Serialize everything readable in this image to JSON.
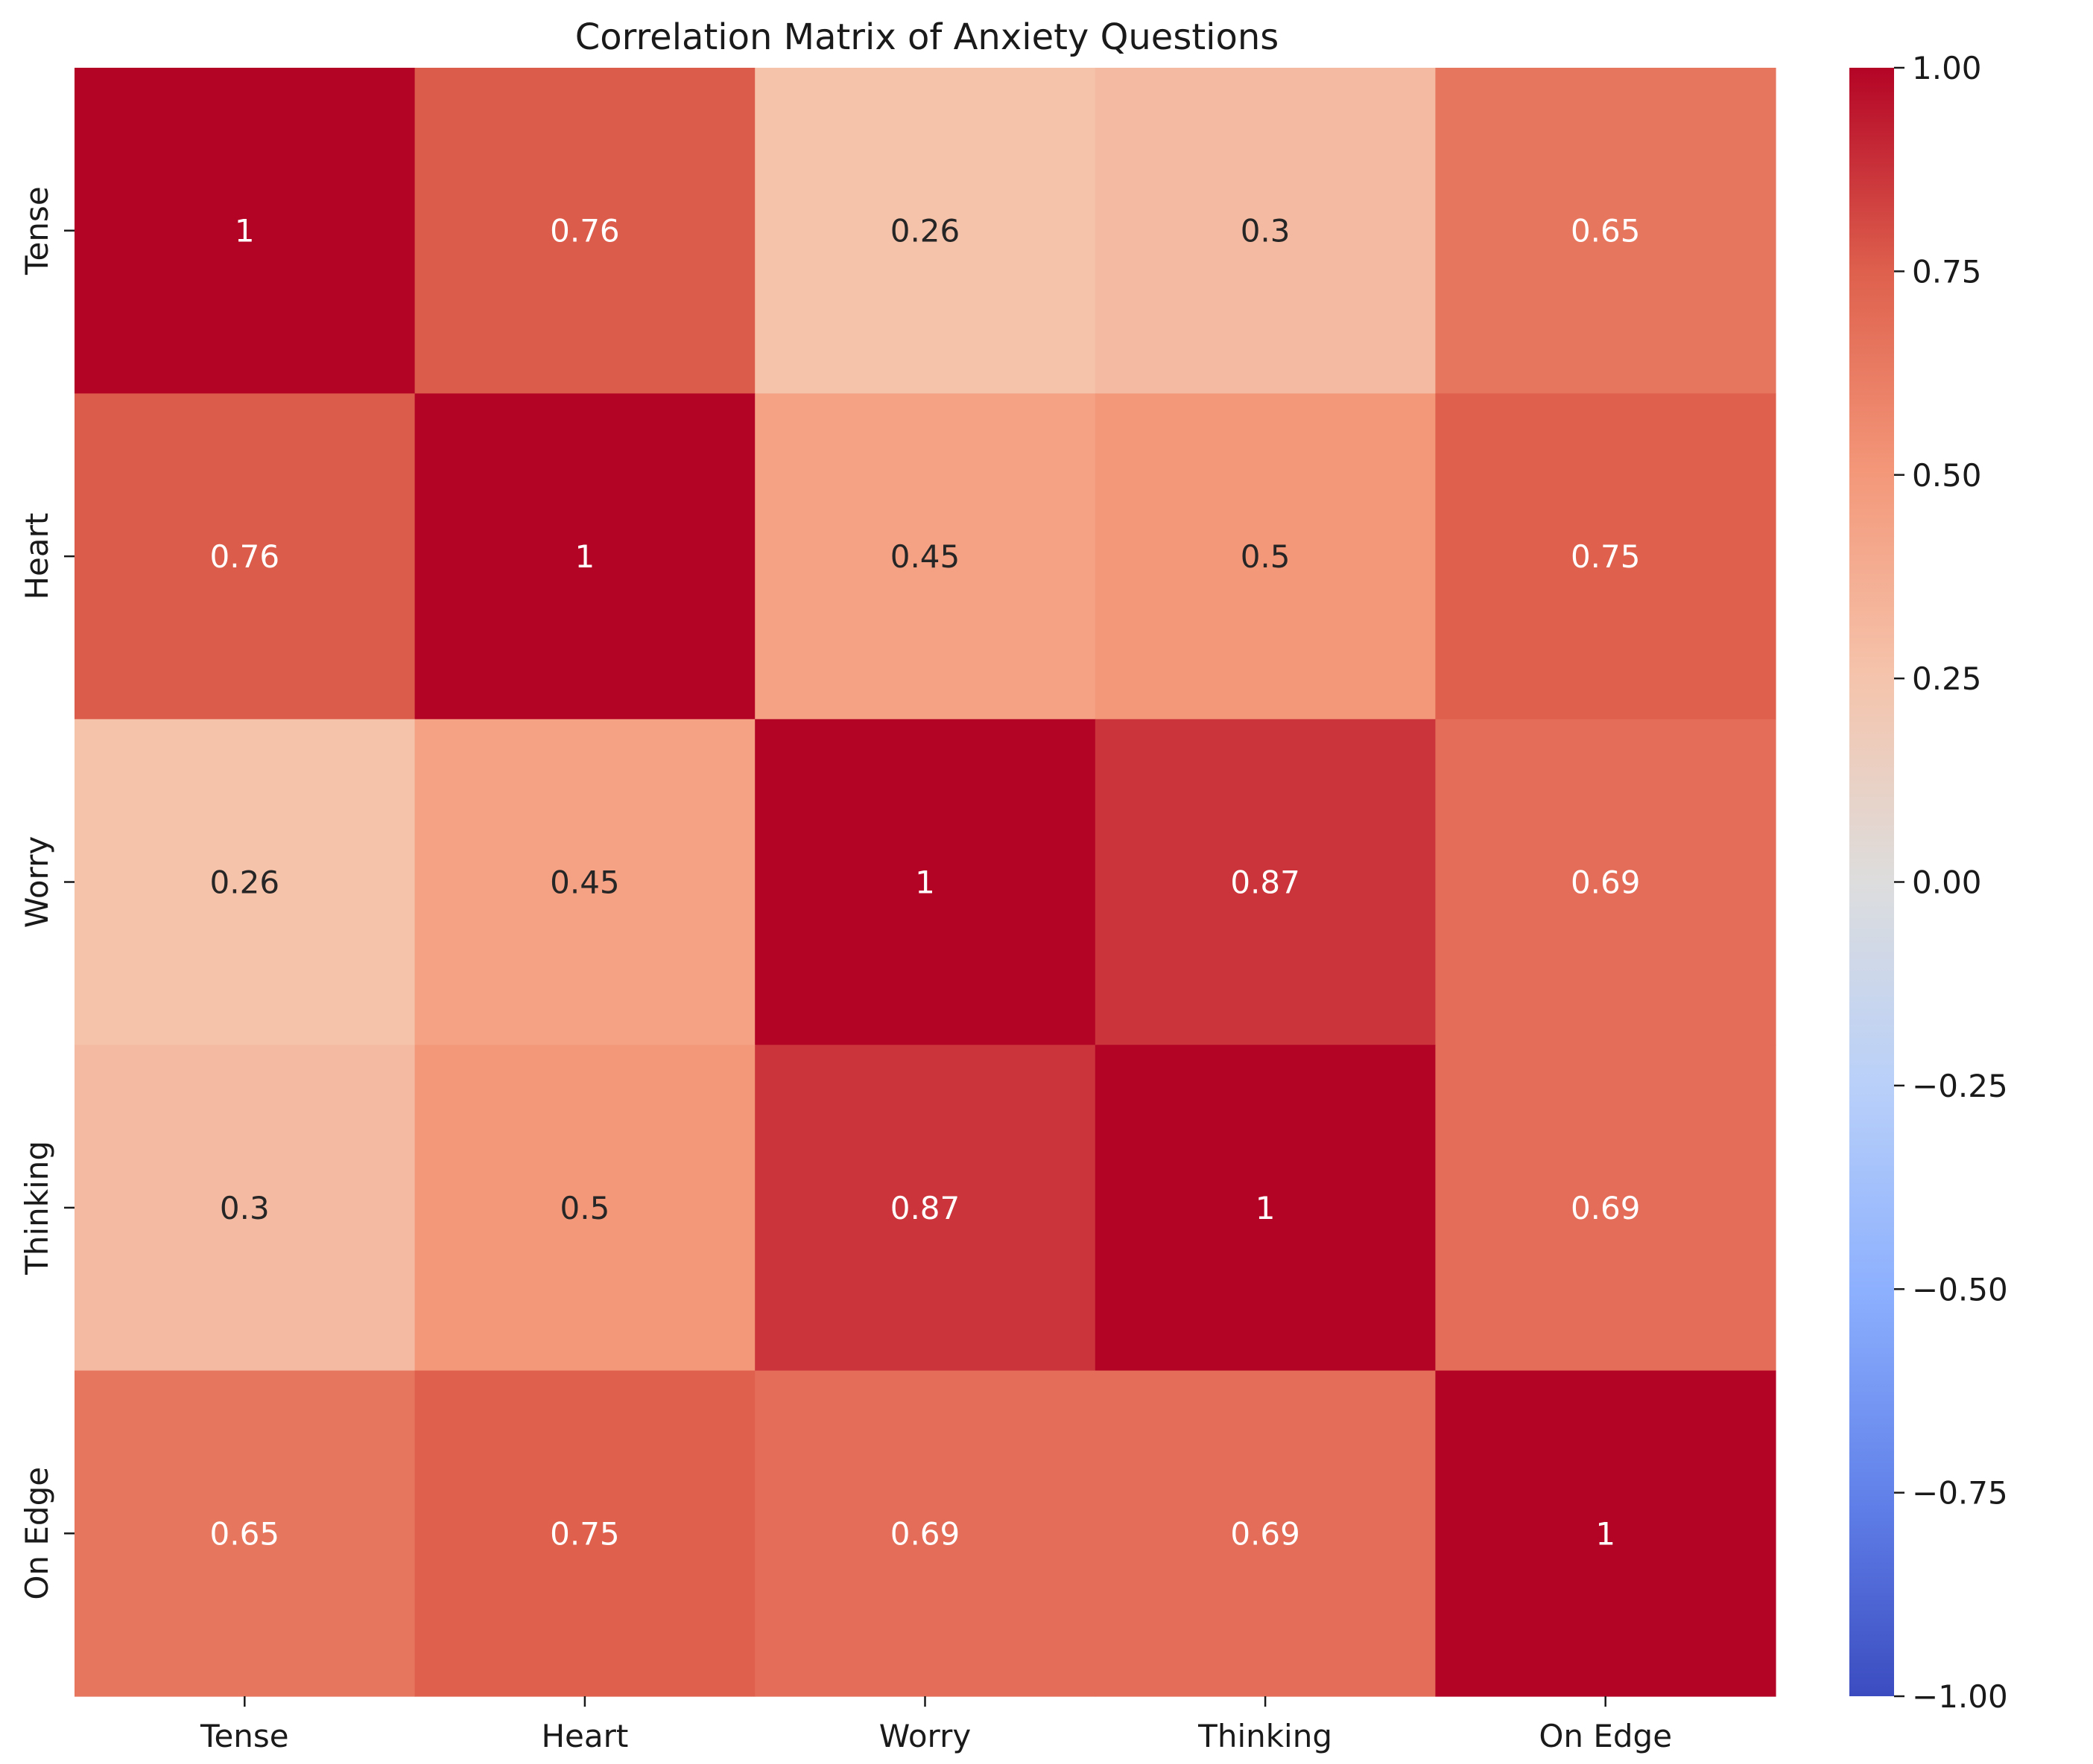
{
  "chart_data": {
    "type": "heatmap",
    "title": "Correlation Matrix of Anxiety Questions",
    "x_labels": [
      "Tense",
      "Heart",
      "Worry",
      "Thinking",
      "On Edge"
    ],
    "y_labels": [
      "Tense",
      "Heart",
      "Worry",
      "Thinking",
      "On Edge"
    ],
    "values": [
      [
        1.0,
        0.76,
        0.26,
        0.3,
        0.65
      ],
      [
        0.76,
        1.0,
        0.45,
        0.5,
        0.75
      ],
      [
        0.26,
        0.45,
        1.0,
        0.87,
        0.69
      ],
      [
        0.3,
        0.5,
        0.87,
        1.0,
        0.69
      ],
      [
        0.65,
        0.75,
        0.69,
        0.69,
        1.0
      ]
    ],
    "annotations": [
      [
        "1",
        "0.76",
        "0.26",
        "0.3",
        "0.65"
      ],
      [
        "0.76",
        "1",
        "0.45",
        "0.5",
        "0.75"
      ],
      [
        "0.26",
        "0.45",
        "1",
        "0.87",
        "0.69"
      ],
      [
        "0.3",
        "0.5",
        "0.87",
        "1",
        "0.69"
      ],
      [
        "0.65",
        "0.75",
        "0.69",
        "0.69",
        "1"
      ]
    ],
    "colormap": "coolwarm",
    "vmin": -1.0,
    "vmax": 1.0,
    "colorbar_ticks": [
      1.0,
      0.75,
      0.5,
      0.25,
      0.0,
      -0.25,
      -0.5,
      -0.75,
      -1.0
    ],
    "colorbar_tick_labels": [
      "1.00",
      "0.75",
      "0.50",
      "0.25",
      "0.00",
      "−0.25",
      "−0.50",
      "−0.75",
      "−1.00"
    ],
    "colorbar_stops": [
      "#3b4cc0",
      "#6282ea",
      "#8db0fe",
      "#b9d0f9",
      "#dddddd",
      "#f5c4ac",
      "#f4987a",
      "#de604d",
      "#b40426"
    ],
    "text_color_light": "#ffffff",
    "text_color_dark": "#262626"
  }
}
